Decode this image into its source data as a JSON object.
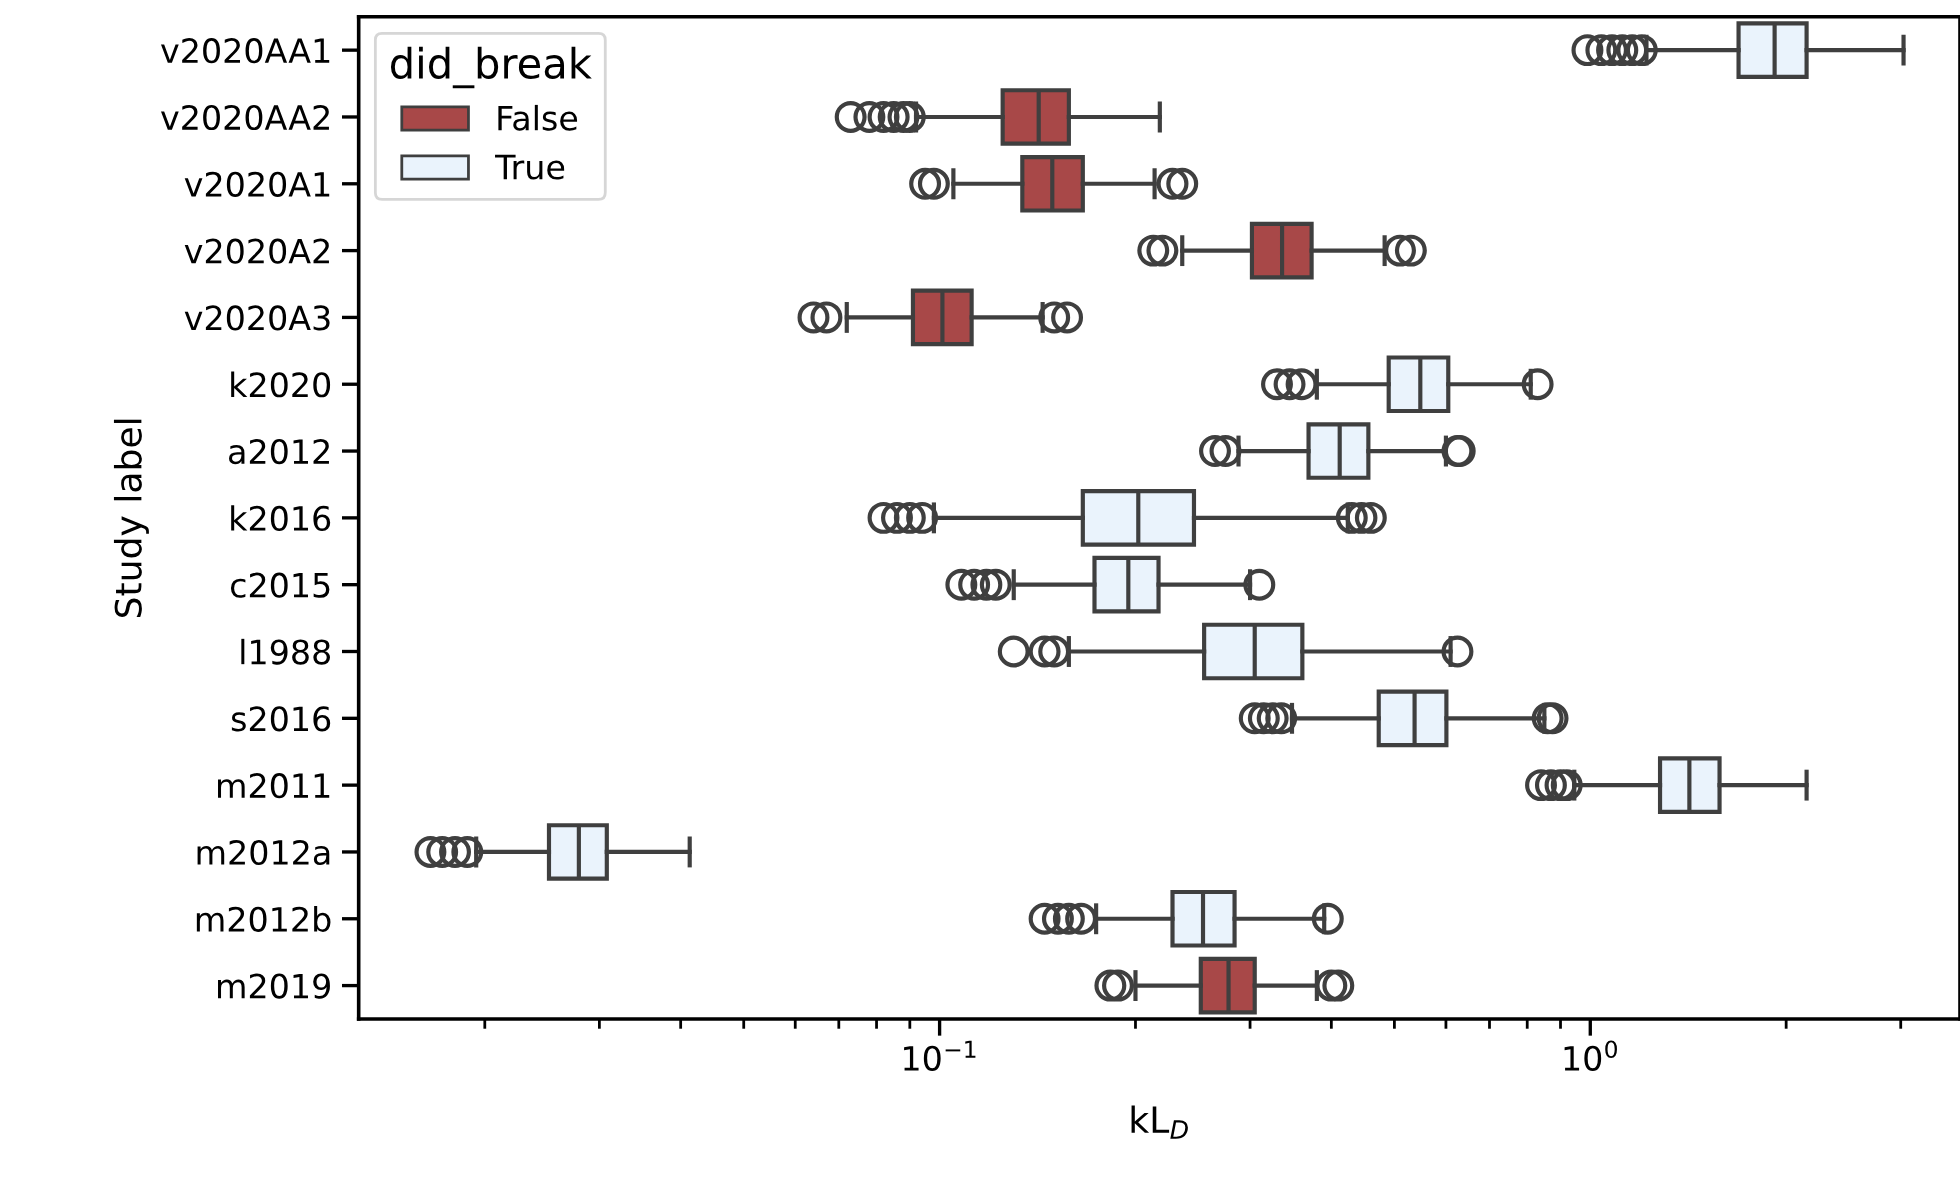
{
  "chart_data": {
    "type": "box",
    "orientation": "horizontal",
    "log": "x",
    "xlabel": "kL$_{D}$",
    "ylabel": "Study label",
    "legend_title": "did_break",
    "legend": "top left",
    "grid": false,
    "categories": [
      "v2020AA1",
      "v2020AA2",
      "v2020A1",
      "v2020A2",
      "v2020A3",
      "k2020",
      "a2012",
      "k2016",
      "c2015",
      "l1988",
      "s2016",
      "m2011",
      "m2012a",
      "m2012b",
      "m2019"
    ],
    "xlim": [
      0.0128,
      3.7
    ],
    "xticks": [
      {
        "value": 0.1,
        "label": "10$^{−1}$"
      },
      {
        "value": 1,
        "label": "10$^{0}$"
      }
    ],
    "series": [
      {
        "name": "False",
        "color": "#a84848",
        "boxes": [
          null,
          {
            "low": 0.092,
            "q1": 0.125,
            "median": 0.142,
            "q3": 0.158,
            "high": 0.218,
            "outliers": [
              0.073,
              0.078,
              0.082,
              0.085,
              0.088,
              0.09
            ]
          },
          {
            "low": 0.105,
            "q1": 0.134,
            "median": 0.149,
            "q3": 0.166,
            "high": 0.214,
            "outliers": [
              0.095,
              0.098,
              0.228,
              0.236
            ]
          },
          {
            "low": 0.236,
            "q1": 0.302,
            "median": 0.336,
            "q3": 0.373,
            "high": 0.483,
            "outliers": [
              0.213,
              0.22,
              0.51,
              0.53
            ]
          },
          {
            "low": 0.072,
            "q1": 0.091,
            "median": 0.101,
            "q3": 0.112,
            "high": 0.144,
            "outliers": [
              0.064,
              0.067,
              0.15,
              0.157
            ]
          },
          null,
          null,
          null,
          null,
          null,
          null,
          null,
          null,
          null,
          {
            "low": 0.2,
            "q1": 0.252,
            "median": 0.278,
            "q3": 0.305,
            "high": 0.38,
            "outliers": [
              0.183,
              0.188,
              0.4,
              0.41
            ]
          }
        ]
      },
      {
        "name": "True",
        "color": "#eaf3fc",
        "boxes": [
          {
            "low": 1.22,
            "q1": 1.69,
            "median": 1.92,
            "q3": 2.15,
            "high": 3.03,
            "outliers": [
              0.99,
              1.04,
              1.08,
              1.12,
              1.16,
              1.2
            ]
          },
          null,
          null,
          null,
          null,
          {
            "low": 0.38,
            "q1": 0.49,
            "median": 0.548,
            "q3": 0.605,
            "high": 0.81,
            "outliers": [
              0.33,
              0.345,
              0.36,
              0.83
            ]
          },
          {
            "low": 0.288,
            "q1": 0.369,
            "median": 0.412,
            "q3": 0.456,
            "high": 0.6,
            "outliers": [
              0.265,
              0.275,
              0.625,
              0.63
            ]
          },
          {
            "low": 0.098,
            "q1": 0.166,
            "median": 0.202,
            "q3": 0.246,
            "high": 0.424,
            "outliers": [
              0.082,
              0.086,
              0.09,
              0.094,
              0.43,
              0.445,
              0.46
            ]
          },
          {
            "low": 0.13,
            "q1": 0.173,
            "median": 0.195,
            "q3": 0.217,
            "high": 0.3,
            "outliers": [
              0.108,
              0.113,
              0.118,
              0.122,
              0.31
            ]
          },
          {
            "low": 0.158,
            "q1": 0.255,
            "median": 0.305,
            "q3": 0.361,
            "high": 0.61,
            "outliers": [
              0.13,
              0.145,
              0.15,
              0.625
            ]
          },
          {
            "low": 0.348,
            "q1": 0.473,
            "median": 0.537,
            "q3": 0.601,
            "high": 0.85,
            "outliers": [
              0.305,
              0.315,
              0.325,
              0.335,
              0.86,
              0.875
            ]
          },
          {
            "low": 0.945,
            "q1": 1.28,
            "median": 1.42,
            "q3": 1.58,
            "high": 2.15,
            "outliers": [
              0.84,
              0.87,
              0.9,
              0.92
            ]
          },
          {
            "low": 0.0194,
            "q1": 0.0251,
            "median": 0.0279,
            "q3": 0.0308,
            "high": 0.0413,
            "outliers": [
              0.0165,
              0.0172,
              0.018,
              0.0188
            ]
          },
          {
            "low": 0.174,
            "q1": 0.228,
            "median": 0.254,
            "q3": 0.284,
            "high": 0.39,
            "outliers": [
              0.145,
              0.152,
              0.158,
              0.165,
              0.395
            ]
          },
          null
        ]
      }
    ]
  }
}
